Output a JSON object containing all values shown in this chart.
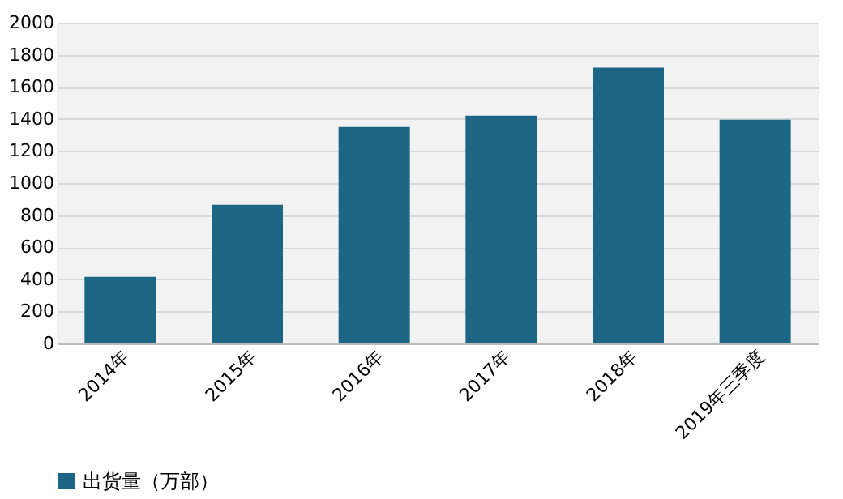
{
  "chart_data": {
    "type": "bar",
    "categories": [
      "2014年",
      "2015年",
      "2016年",
      "2017年",
      "2018年",
      "2019年三季度"
    ],
    "series": [
      {
        "name": "出货量（万部）",
        "color": "#1c6585",
        "values": [
          415,
          865,
          1350,
          1420,
          1720,
          1395
        ]
      }
    ],
    "ylim": [
      0,
      2000
    ],
    "yticks": [
      0,
      200,
      400,
      600,
      800,
      1000,
      1200,
      1400,
      1600,
      1800,
      2000
    ],
    "grid": "y",
    "legend": "bottom"
  }
}
